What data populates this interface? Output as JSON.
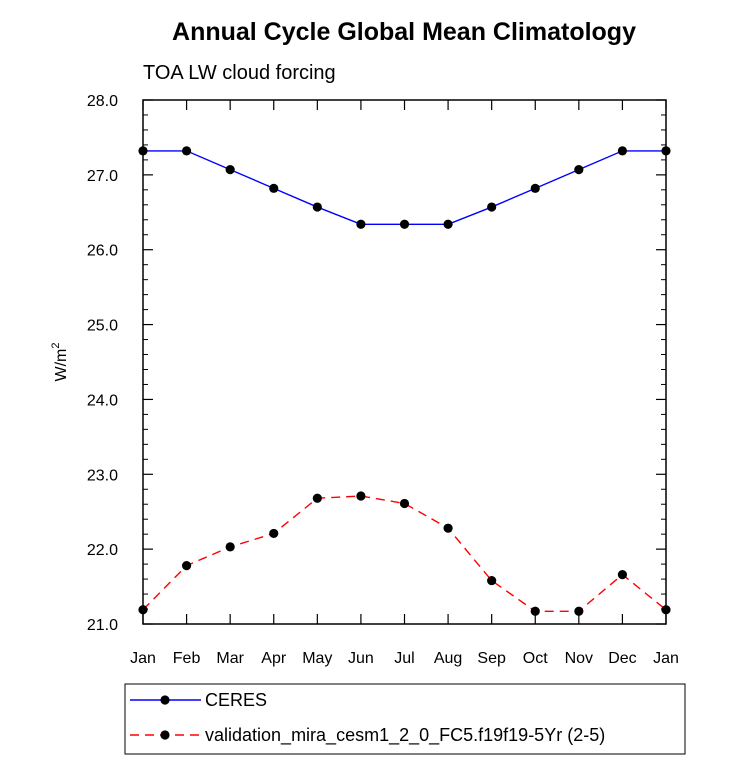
{
  "chart_data": {
    "type": "line",
    "title": "Annual Cycle Global Mean Climatology",
    "subtitle": "TOA LW cloud forcing",
    "ylabel": "W/m",
    "ylabel_sup": "2",
    "categories": [
      "Jan",
      "Feb",
      "Mar",
      "Apr",
      "May",
      "Jun",
      "Jul",
      "Aug",
      "Sep",
      "Oct",
      "Nov",
      "Dec",
      "Jan"
    ],
    "ylim": [
      21.0,
      28.0
    ],
    "yticks": [
      "21.0",
      "22.0",
      "23.0",
      "24.0",
      "25.0",
      "26.0",
      "27.0",
      "28.0"
    ],
    "grid": false,
    "legend_position": "bottom",
    "series": [
      {
        "name": "CERES",
        "color": "#0000ff",
        "dash": "solid",
        "marker": "filled-circle",
        "values": [
          27.32,
          27.32,
          27.07,
          26.82,
          26.57,
          26.34,
          26.34,
          26.34,
          26.57,
          26.82,
          27.07,
          27.32,
          27.32
        ]
      },
      {
        "name": "validation_mira_cesm1_2_0_FC5.f19f19-5Yr (2-5)",
        "color": "#ff0000",
        "dash": "dashed",
        "marker": "filled-circle",
        "values": [
          21.19,
          21.78,
          22.03,
          22.21,
          22.68,
          22.71,
          22.61,
          22.28,
          21.58,
          21.17,
          21.17,
          21.66,
          21.19
        ]
      }
    ]
  }
}
